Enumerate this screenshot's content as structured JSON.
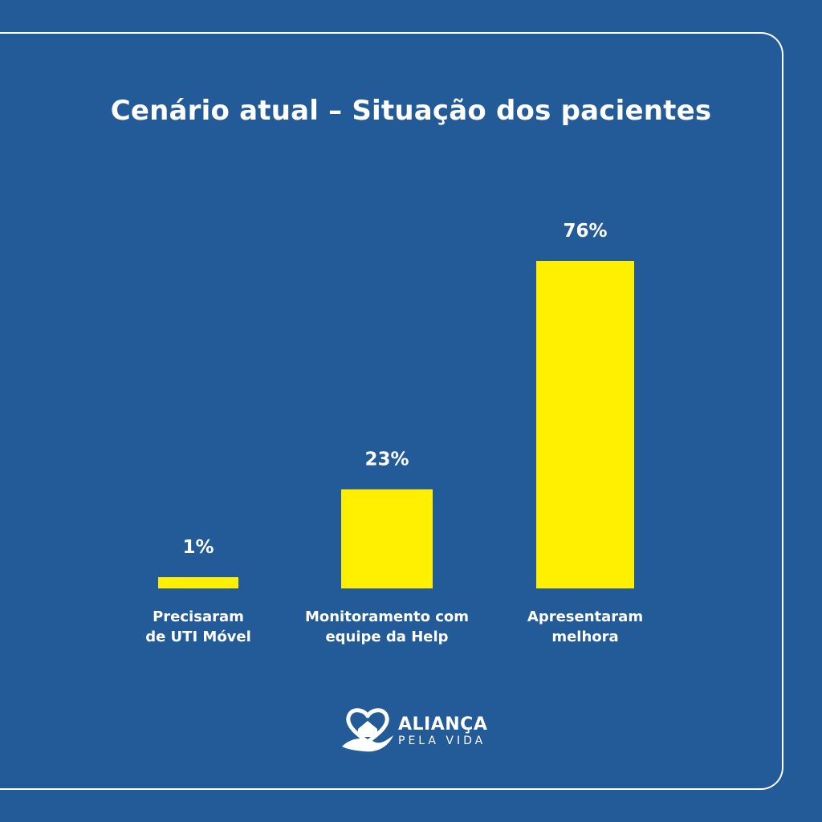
{
  "colors": {
    "background": "#235a98",
    "bar": "#ffef00",
    "text": "#ffffff"
  },
  "chart_data": {
    "type": "bar",
    "title": "Cenário atual – Situação dos pacientes",
    "categories": [
      [
        "Precisaram",
        "de UTI Móvel"
      ],
      [
        "Monitoramento com",
        "equipe da Help"
      ],
      [
        "Apresentaram",
        "melhora"
      ]
    ],
    "values": [
      1,
      23,
      76
    ],
    "value_labels": [
      "1%",
      "23%",
      "76%"
    ],
    "unit": "%",
    "ylim": [
      0,
      76
    ],
    "grid": false,
    "legend": "none"
  },
  "logo": {
    "name": "ALIANÇA",
    "sub": "PELA VIDA",
    "icon": "heart-hands-logo-icon"
  }
}
